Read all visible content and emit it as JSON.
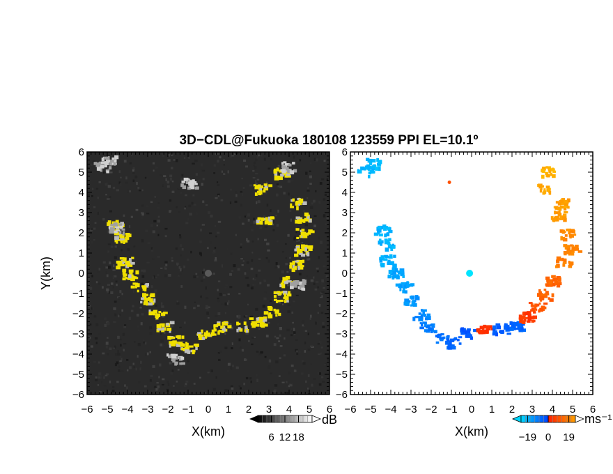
{
  "title": "3D−CDL@Fukuoka 180108 123559 PPI EL=10.1º",
  "chart_data": [
    {
      "type": "heatmap",
      "panel": "left",
      "variable": "SNR",
      "xlabel": "X(km)",
      "ylabel": "Y(km)",
      "xlim": [
        -6,
        6
      ],
      "ylim": [
        -6,
        6
      ],
      "xticks": [
        "−6",
        "−5",
        "−4",
        "−3",
        "−2",
        "−1",
        "0",
        "1",
        "2",
        "3",
        "4",
        "5",
        "6"
      ],
      "yticks": [
        "6",
        "5",
        "4",
        "3",
        "2",
        "1",
        "0",
        "−1",
        "−2",
        "−3",
        "−4",
        "−5",
        "−6"
      ],
      "background_color": "#2a2a2a",
      "colorbar": {
        "unit": "dB",
        "ticks": [
          "6",
          "12",
          "18"
        ],
        "range": [
          0,
          24
        ],
        "colors": [
          "#000000",
          "#ffffff"
        ]
      },
      "echo_color": "#f0e000",
      "echo_arc": [
        {
          "x": -4.7,
          "y": 2.4,
          "value": 18
        },
        {
          "x": -4.3,
          "y": 1.8,
          "value": 18
        },
        {
          "x": -4.2,
          "y": 0.6,
          "value": 18
        },
        {
          "x": -3.9,
          "y": 0.0,
          "value": 18
        },
        {
          "x": -3.5,
          "y": -0.6,
          "value": 18
        },
        {
          "x": -3.0,
          "y": -1.2,
          "value": 18
        },
        {
          "x": -2.6,
          "y": -1.9,
          "value": 18
        },
        {
          "x": -2.2,
          "y": -2.6,
          "value": 18
        },
        {
          "x": -1.7,
          "y": -3.3,
          "value": 18
        },
        {
          "x": -1.0,
          "y": -3.6,
          "value": 18
        },
        {
          "x": -0.2,
          "y": -3.0,
          "value": 18
        },
        {
          "x": 0.6,
          "y": -2.6,
          "value": 18
        },
        {
          "x": 1.5,
          "y": -2.6,
          "value": 18
        },
        {
          "x": 2.4,
          "y": -2.3,
          "value": 18
        },
        {
          "x": 3.1,
          "y": -1.8,
          "value": 18
        },
        {
          "x": 3.6,
          "y": -1.1,
          "value": 18
        },
        {
          "x": 3.9,
          "y": -0.3,
          "value": 18
        },
        {
          "x": 4.3,
          "y": 0.5,
          "value": 18
        },
        {
          "x": 4.6,
          "y": 1.2,
          "value": 18
        },
        {
          "x": 4.7,
          "y": 2.0,
          "value": 18
        },
        {
          "x": 4.6,
          "y": 2.8,
          "value": 18
        },
        {
          "x": 4.3,
          "y": 3.5,
          "value": 18
        },
        {
          "x": 2.6,
          "y": 4.2,
          "value": 18
        },
        {
          "x": 3.6,
          "y": 5.0,
          "value": 18
        },
        {
          "x": 2.7,
          "y": 2.6,
          "value": 18
        }
      ],
      "echo_gray": [
        {
          "x": -5.3,
          "y": 5.3,
          "value": 14
        },
        {
          "x": -5.0,
          "y": 5.7,
          "value": 14
        },
        {
          "x": -4.6,
          "y": 2.3,
          "value": 14
        },
        {
          "x": -1.7,
          "y": -4.2,
          "value": 14
        },
        {
          "x": 3.9,
          "y": 5.3,
          "value": 14
        },
        {
          "x": 4.4,
          "y": -0.5,
          "value": 14
        },
        {
          "x": -1.0,
          "y": 4.5,
          "value": 14
        }
      ]
    },
    {
      "type": "heatmap",
      "panel": "right",
      "variable": "radial velocity",
      "xlabel": "X(km)",
      "xlim": [
        -6,
        6
      ],
      "ylim": [
        -6,
        6
      ],
      "xticks": [
        "−6",
        "−5",
        "−4",
        "−3",
        "−2",
        "−1",
        "0",
        "1",
        "2",
        "3",
        "4",
        "5",
        "6"
      ],
      "yticks": [
        "6",
        "5",
        "4",
        "3",
        "2",
        "1",
        "0",
        "−1",
        "−2",
        "−3",
        "−4",
        "−5",
        "−6"
      ],
      "background_color": "#ffffff",
      "colorbar": {
        "unit": "ms⁻¹",
        "ticks": [
          "−19",
          "0",
          "19"
        ],
        "range": [
          -25,
          25
        ],
        "colors": [
          "#00d8ff",
          "#0040ff",
          "#ff2000",
          "#ffa000"
        ]
      },
      "echo_arc": [
        {
          "x": -5.3,
          "y": 5.1,
          "value": -20
        },
        {
          "x": -4.9,
          "y": 5.5,
          "value": -20
        },
        {
          "x": -4.5,
          "y": 2.2,
          "value": -19
        },
        {
          "x": -4.3,
          "y": 1.5,
          "value": -19
        },
        {
          "x": -4.2,
          "y": 0.7,
          "value": -18
        },
        {
          "x": -3.8,
          "y": 0.1,
          "value": -17
        },
        {
          "x": -3.4,
          "y": -0.6,
          "value": -16
        },
        {
          "x": -3.0,
          "y": -1.3,
          "value": -14
        },
        {
          "x": -2.6,
          "y": -2.0,
          "value": -12
        },
        {
          "x": -2.2,
          "y": -2.6,
          "value": -10
        },
        {
          "x": -1.6,
          "y": -3.2,
          "value": -8
        },
        {
          "x": -0.9,
          "y": -3.4,
          "value": -6
        },
        {
          "x": -0.3,
          "y": -2.9,
          "value": -4
        },
        {
          "x": 0.6,
          "y": -2.7,
          "value": 3
        },
        {
          "x": 1.4,
          "y": -2.7,
          "value": -5
        },
        {
          "x": 2.1,
          "y": -2.6,
          "value": -6
        },
        {
          "x": 2.7,
          "y": -2.1,
          "value": 4
        },
        {
          "x": 3.2,
          "y": -1.6,
          "value": 8
        },
        {
          "x": 3.6,
          "y": -1.0,
          "value": 10
        },
        {
          "x": 4.0,
          "y": -0.3,
          "value": 10
        },
        {
          "x": 4.5,
          "y": 0.6,
          "value": 14
        },
        {
          "x": 4.9,
          "y": 1.3,
          "value": 15
        },
        {
          "x": 4.7,
          "y": 2.0,
          "value": 16
        },
        {
          "x": 4.3,
          "y": 2.9,
          "value": 18
        },
        {
          "x": 4.4,
          "y": 3.5,
          "value": 19
        },
        {
          "x": 3.5,
          "y": 4.2,
          "value": 20
        },
        {
          "x": 3.7,
          "y": 5.1,
          "value": 22
        }
      ],
      "echo_isolated": [
        {
          "x": -0.1,
          "y": 0.0,
          "value": 0
        },
        {
          "x": -1.1,
          "y": 4.5,
          "value": 14
        }
      ]
    }
  ]
}
